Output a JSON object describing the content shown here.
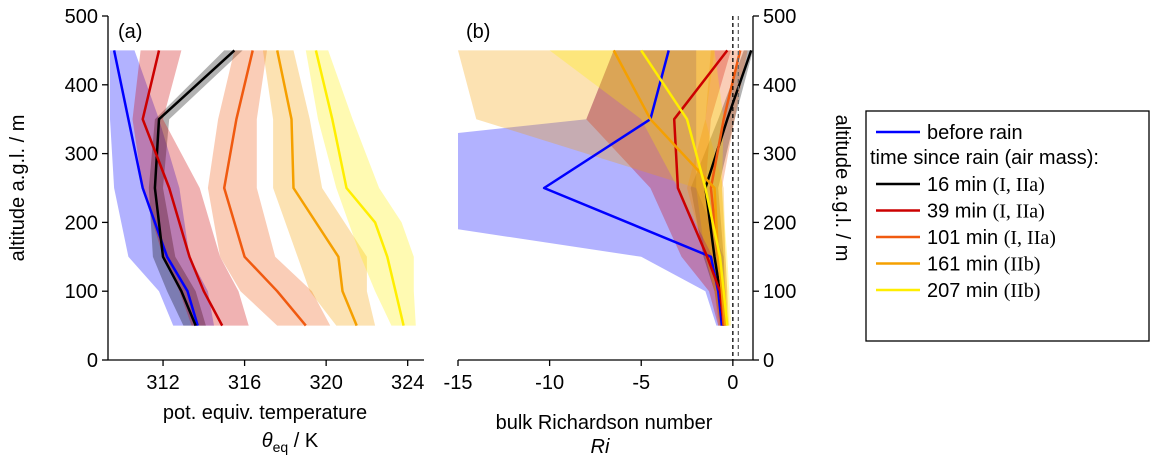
{
  "chart_data": [
    {
      "type": "line",
      "panel_label": "(a)",
      "xlabel_line1": "pot. equiv. temperature",
      "xlabel_symbol": "θ",
      "xlabel_sub": "eq",
      "xlabel_unit": " / K",
      "ylabel": "altitude a.g.l. / m",
      "xlim": [
        309.3,
        324.8
      ],
      "ylim": [
        0,
        500
      ],
      "xticks": [
        312,
        316,
        320,
        324
      ],
      "yticks": [
        0,
        100,
        200,
        300,
        400,
        500
      ],
      "series": [
        {
          "color": "#0000ff",
          "points": [
            [
              313.7,
              50
            ],
            [
              313.2,
              100
            ],
            [
              312.2,
              150
            ],
            [
              311.0,
              250
            ],
            [
              310.3,
              350
            ],
            [
              309.6,
              450
            ]
          ],
          "band_low": [
            [
              312.5,
              50
            ],
            [
              311.8,
              100
            ],
            [
              310.3,
              150
            ],
            [
              309.6,
              250
            ],
            [
              309.4,
              350
            ],
            [
              309.4,
              450
            ]
          ],
          "band_high": [
            [
              314.5,
              50
            ],
            [
              314.2,
              100
            ],
            [
              313.3,
              150
            ],
            [
              312.8,
              250
            ],
            [
              311.8,
              350
            ],
            [
              310.6,
              450
            ]
          ]
        },
        {
          "color": "#000000",
          "points": [
            [
              313.6,
              50
            ],
            [
              312.9,
              100
            ],
            [
              312.0,
              150
            ],
            [
              311.6,
              250
            ],
            [
              311.8,
              350
            ],
            [
              315.5,
              450
            ]
          ],
          "band_low": [
            [
              313.0,
              50
            ],
            [
              312.2,
              100
            ],
            [
              311.5,
              150
            ],
            [
              311.3,
              250
            ],
            [
              311.6,
              350
            ],
            [
              315.0,
              450
            ]
          ],
          "band_high": [
            [
              314.1,
              50
            ],
            [
              313.6,
              100
            ],
            [
              312.6,
              150
            ],
            [
              312.0,
              250
            ],
            [
              312.3,
              350
            ],
            [
              315.9,
              450
            ]
          ]
        },
        {
          "color": "#cc0000",
          "points": [
            [
              314.9,
              50
            ],
            [
              314.0,
              100
            ],
            [
              313.3,
              150
            ],
            [
              312.3,
              250
            ],
            [
              311.0,
              350
            ],
            [
              311.8,
              450
            ]
          ],
          "band_low": [
            [
              313.4,
              50
            ],
            [
              312.8,
              100
            ],
            [
              312.0,
              150
            ],
            [
              311.0,
              250
            ],
            [
              310.5,
              350
            ],
            [
              310.9,
              450
            ]
          ],
          "band_high": [
            [
              316.2,
              50
            ],
            [
              315.7,
              100
            ],
            [
              314.8,
              150
            ],
            [
              313.8,
              250
            ],
            [
              312.0,
              350
            ],
            [
              312.9,
              450
            ]
          ]
        },
        {
          "color": "#f05a10",
          "points": [
            [
              319.0,
              50
            ],
            [
              317.6,
              100
            ],
            [
              316.0,
              150
            ],
            [
              315.0,
              250
            ],
            [
              315.6,
              350
            ],
            [
              316.4,
              450
            ]
          ],
          "band_low": [
            [
              317.6,
              50
            ],
            [
              315.8,
              100
            ],
            [
              314.8,
              150
            ],
            [
              314.2,
              250
            ],
            [
              314.7,
              350
            ],
            [
              315.5,
              450
            ]
          ],
          "band_high": [
            [
              320.2,
              50
            ],
            [
              319.3,
              100
            ],
            [
              317.5,
              150
            ],
            [
              316.6,
              250
            ],
            [
              316.6,
              350
            ],
            [
              317.1,
              450
            ]
          ]
        },
        {
          "color": "#f5a000",
          "points": [
            [
              321.5,
              50
            ],
            [
              320.8,
              100
            ],
            [
              320.6,
              150
            ],
            [
              318.4,
              250
            ],
            [
              318.3,
              350
            ],
            [
              317.6,
              450
            ]
          ],
          "band_low": [
            [
              320.5,
              50
            ],
            [
              319.2,
              100
            ],
            [
              318.6,
              150
            ],
            [
              317.4,
              250
            ],
            [
              317.4,
              350
            ],
            [
              316.9,
              450
            ]
          ],
          "band_high": [
            [
              322.4,
              50
            ],
            [
              322.0,
              100
            ],
            [
              322.0,
              150
            ],
            [
              319.8,
              250
            ],
            [
              319.2,
              350
            ],
            [
              318.4,
              450
            ]
          ]
        },
        {
          "color": "#ffee00",
          "points": [
            [
              323.8,
              50
            ],
            [
              323.4,
              100
            ],
            [
              323.0,
              150
            ],
            [
              322.4,
              200
            ],
            [
              321.0,
              250
            ],
            [
              320.3,
              350
            ],
            [
              319.5,
              450
            ]
          ],
          "band_low": [
            [
              323.2,
              50
            ],
            [
              322.4,
              100
            ],
            [
              321.7,
              150
            ],
            [
              320.5,
              250
            ],
            [
              319.6,
              350
            ],
            [
              319.0,
              450
            ]
          ],
          "band_high": [
            [
              324.4,
              50
            ],
            [
              324.3,
              100
            ],
            [
              324.3,
              150
            ],
            [
              323.7,
              200
            ],
            [
              322.6,
              250
            ],
            [
              321.3,
              350
            ],
            [
              320.1,
              450
            ]
          ]
        }
      ]
    },
    {
      "type": "line",
      "panel_label": "(b)",
      "xlabel_line1": "bulk Richardson number",
      "xlabel_italic": "Ri",
      "ylabel": "altitude a.g.l. / m",
      "xlim": [
        -15,
        1.1
      ],
      "ylim": [
        0,
        500
      ],
      "xticks": [
        -15,
        -10,
        -5,
        0
      ],
      "yticks": [
        0,
        100,
        200,
        300,
        400,
        500
      ],
      "series": [
        {
          "color": "#0000ff",
          "points": [
            [
              -0.6,
              50
            ],
            [
              -0.8,
              100
            ],
            [
              -1.2,
              150
            ],
            [
              -10.3,
              250
            ],
            [
              -4.5,
              350
            ],
            [
              -3.5,
              450
            ]
          ],
          "band_low": [
            [
              -0.9,
              50
            ],
            [
              -1.5,
              100
            ],
            [
              -5.0,
              150
            ],
            [
              -15,
              190
            ],
            [
              -15,
              330
            ],
            [
              -8.0,
              350
            ],
            [
              -6.5,
              450
            ]
          ],
          "band_high": [
            [
              -0.4,
              50
            ],
            [
              -0.5,
              100
            ],
            [
              -0.5,
              150
            ],
            [
              -2.0,
              250
            ],
            [
              -2.0,
              350
            ],
            [
              -2.0,
              450
            ]
          ]
        },
        {
          "color": "#000000",
          "points": [
            [
              -0.5,
              50
            ],
            [
              -0.7,
              100
            ],
            [
              -1.0,
              150
            ],
            [
              -1.5,
              250
            ],
            [
              -0.3,
              350
            ],
            [
              1.0,
              450
            ]
          ],
          "band_low": [
            [
              -0.7,
              50
            ],
            [
              -1.0,
              100
            ],
            [
              -1.6,
              150
            ],
            [
              -2.3,
              250
            ],
            [
              -0.8,
              350
            ],
            [
              0.6,
              450
            ]
          ],
          "band_high": [
            [
              -0.3,
              50
            ],
            [
              -0.4,
              100
            ],
            [
              -0.5,
              150
            ],
            [
              -0.8,
              250
            ],
            [
              0.1,
              350
            ],
            [
              1.1,
              450
            ]
          ]
        },
        {
          "color": "#cc0000",
          "points": [
            [
              -0.5,
              50
            ],
            [
              -0.7,
              100
            ],
            [
              -1.4,
              150
            ],
            [
              -3.0,
              250
            ],
            [
              -3.2,
              350
            ],
            [
              -0.3,
              450
            ]
          ],
          "band_low": [
            [
              -0.8,
              50
            ],
            [
              -1.3,
              100
            ],
            [
              -2.8,
              150
            ],
            [
              -4.5,
              250
            ],
            [
              -8.0,
              350
            ],
            [
              -6.5,
              450
            ]
          ],
          "band_high": [
            [
              -0.3,
              50
            ],
            [
              -0.4,
              100
            ],
            [
              -0.7,
              150
            ],
            [
              -1.5,
              250
            ],
            [
              -1.2,
              350
            ],
            [
              -0.1,
              450
            ]
          ]
        },
        {
          "color": "#f05a10",
          "points": [
            [
              -0.5,
              50
            ],
            [
              -0.6,
              100
            ],
            [
              -0.8,
              150
            ],
            [
              -1.2,
              250
            ],
            [
              -0.5,
              350
            ],
            [
              0.4,
              450
            ]
          ],
          "band_low": [
            [
              -0.8,
              50
            ],
            [
              -1.0,
              100
            ],
            [
              -1.5,
              150
            ],
            [
              -2.5,
              250
            ],
            [
              -1.5,
              350
            ],
            [
              -1.2,
              450
            ]
          ],
          "band_high": [
            [
              -0.3,
              50
            ],
            [
              -0.3,
              100
            ],
            [
              -0.4,
              150
            ],
            [
              -0.6,
              250
            ],
            [
              0.1,
              350
            ],
            [
              0.8,
              450
            ]
          ]
        },
        {
          "color": "#f5a000",
          "points": [
            [
              -0.4,
              50
            ],
            [
              -0.6,
              100
            ],
            [
              -0.8,
              150
            ],
            [
              -1.0,
              250
            ],
            [
              -4.5,
              350
            ],
            [
              -6.5,
              450
            ]
          ],
          "band_low": [
            [
              -0.7,
              50
            ],
            [
              -1.0,
              100
            ],
            [
              -1.5,
              150
            ],
            [
              -2.0,
              250
            ],
            [
              -14,
              350
            ],
            [
              -15,
              450
            ]
          ],
          "band_high": [
            [
              -0.2,
              50
            ],
            [
              -0.3,
              100
            ],
            [
              -0.4,
              150
            ],
            [
              -0.5,
              250
            ],
            [
              -1.5,
              350
            ],
            [
              -1.0,
              450
            ]
          ]
        },
        {
          "color": "#ffee00",
          "points": [
            [
              -0.3,
              50
            ],
            [
              -0.5,
              100
            ],
            [
              -0.7,
              150
            ],
            [
              -1.5,
              250
            ],
            [
              -2.5,
              350
            ],
            [
              -5.0,
              450
            ]
          ],
          "band_low": [
            [
              -0.6,
              50
            ],
            [
              -0.8,
              100
            ],
            [
              -1.1,
              150
            ],
            [
              -3.0,
              250
            ],
            [
              -5.0,
              350
            ],
            [
              -10.0,
              450
            ]
          ],
          "band_high": [
            [
              -0.1,
              50
            ],
            [
              -0.2,
              100
            ],
            [
              -0.3,
              150
            ],
            [
              -0.6,
              250
            ],
            [
              -0.5,
              350
            ],
            [
              -1.0,
              450
            ]
          ]
        }
      ]
    }
  ],
  "legend": {
    "before_rain": "before rain",
    "header": "time since rain (air mass):",
    "entries": [
      {
        "time": "16 min",
        "mass": "(I, IIa)",
        "color": "#000000"
      },
      {
        "time": "39 min",
        "mass": "(I, IIa)",
        "color": "#cc0000"
      },
      {
        "time": "101 min",
        "mass": "(I, IIa)",
        "color": "#f05a10"
      },
      {
        "time": "161 min",
        "mass": "(IIb)",
        "color": "#f5a000"
      },
      {
        "time": "207 min",
        "mass": "(IIb)",
        "color": "#ffee00"
      }
    ],
    "before_rain_color": "#0000ff"
  }
}
